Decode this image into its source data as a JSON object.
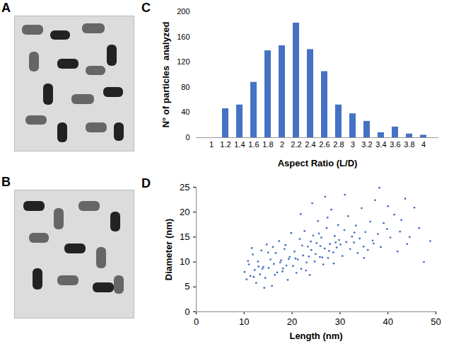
{
  "images": [
    {
      "panel": "A"
    },
    {
      "panel": "B"
    }
  ],
  "chart_data": [
    {
      "panel": "C",
      "type": "bar",
      "x_label": "Aspect Ratio (L/D)",
      "y_label": "N° of particles  analyzed",
      "categories": [
        "1",
        "1.2",
        "1.4",
        "1.6",
        "1.8",
        "2",
        "2.2",
        "2.4",
        "2.6",
        "2.8",
        "3",
        "3.2",
        "3.4",
        "3.6",
        "3.8",
        "4"
      ],
      "values": [
        0,
        46,
        52,
        88,
        138,
        146,
        182,
        140,
        105,
        52,
        38,
        26,
        8,
        17,
        6,
        4
      ],
      "color": "#4472c4",
      "ylim": [
        0,
        200
      ],
      "yticks": [
        0,
        40,
        80,
        120,
        160,
        200
      ],
      "grid": false
    },
    {
      "panel": "D",
      "type": "scatter",
      "x_label": "Length (nm)",
      "y_label": "Diameter (nm)",
      "x": [
        10.1,
        10.5,
        11.0,
        11.3,
        11.8,
        12.2,
        12.5,
        12.9,
        13.3,
        13.6,
        14.0,
        14.4,
        14.7,
        15.1,
        15.5,
        15.8,
        16.2,
        16.6,
        16.9,
        17.3,
        17.7,
        18.0,
        18.4,
        18.8,
        19.1,
        19.5,
        19.8,
        10.8,
        12.0,
        13.8,
        15.0,
        16.4,
        17.5,
        18.6,
        19.3,
        14.2,
        16.0,
        18.1,
        11.6,
        13.0,
        20.2,
        20.5,
        20.9,
        21.2,
        21.6,
        21.9,
        22.3,
        22.6,
        23.0,
        23.3,
        23.7,
        24.0,
        24.4,
        24.7,
        25.1,
        25.4,
        25.8,
        26.1,
        26.5,
        26.8,
        27.2,
        27.5,
        27.9,
        28.2,
        28.6,
        28.9,
        29.3,
        29.6,
        20.7,
        21.8,
        22.9,
        23.9,
        24.9,
        25.9,
        26.9,
        27.7,
        28.7,
        29.8,
        22.1,
        24.2,
        26.3,
        23.5,
        25.6,
        27.4,
        29.1,
        30.1,
        30.5,
        30.9,
        31.3,
        31.7,
        32.1,
        32.5,
        32.9,
        33.3,
        33.7,
        34.1,
        34.5,
        34.9,
        35.3,
        35.8,
        36.3,
        36.8,
        37.3,
        37.9,
        38.5,
        39.1,
        39.8,
        40.5,
        41.3,
        42.0,
        42.8,
        43.6,
        44.5,
        45.5,
        46.5,
        47.5,
        48.8,
        31.0,
        33.0,
        35.0,
        37.0,
        38.2,
        40.0,
        42.5,
        44.0
      ],
      "y": [
        8.0,
        6.5,
        9.5,
        7.2,
        11.5,
        8.4,
        5.8,
        10.1,
        7.5,
        12.3,
        9.0,
        6.8,
        13.5,
        8.8,
        10.5,
        5.2,
        9.6,
        11.8,
        7.9,
        14.2,
        10.3,
        8.1,
        12.6,
        9.3,
        6.4,
        11.0,
        15.8,
        10.2,
        7.0,
        8.6,
        11.9,
        7.4,
        9.9,
        13.4,
        10.6,
        4.8,
        13.0,
        8.7,
        12.8,
        9.1,
        9.2,
        12.1,
        7.8,
        10.5,
        14.6,
        8.6,
        11.3,
        16.2,
        9.9,
        13.1,
        7.4,
        12.4,
        15.3,
        10.1,
        13.8,
        18.2,
        11.0,
        14.9,
        9.5,
        12.7,
        16.8,
        10.8,
        13.6,
        20.5,
        11.9,
        15.2,
        12.9,
        17.4,
        10.7,
        19.6,
        8.3,
        14.1,
        11.6,
        13.2,
        23.1,
        12.2,
        9.7,
        14.4,
        13.3,
        21.8,
        10.9,
        11.1,
        15.7,
        18.9,
        13.9,
        13.5,
        11.2,
        16.4,
        14.0,
        19.2,
        12.6,
        15.1,
        13.9,
        17.3,
        11.8,
        14.7,
        20.8,
        13.1,
        16.0,
        12.4,
        18.1,
        14.3,
        22.4,
        15.6,
        13.0,
        17.8,
        16.6,
        14.9,
        19.5,
        12.1,
        18.4,
        22.7,
        15.0,
        20.9,
        16.8,
        10.0,
        14.2,
        23.5,
        15.9,
        10.8,
        13.7,
        24.9,
        21.2,
        16.1,
        13.6
      ],
      "color": "#4472c4",
      "xlim": [
        0,
        50
      ],
      "xticks": [
        0,
        10,
        20,
        30,
        40,
        50
      ],
      "ylim": [
        0,
        25
      ],
      "yticks": [
        0,
        5,
        10,
        15,
        20,
        25
      ],
      "grid": false
    }
  ]
}
